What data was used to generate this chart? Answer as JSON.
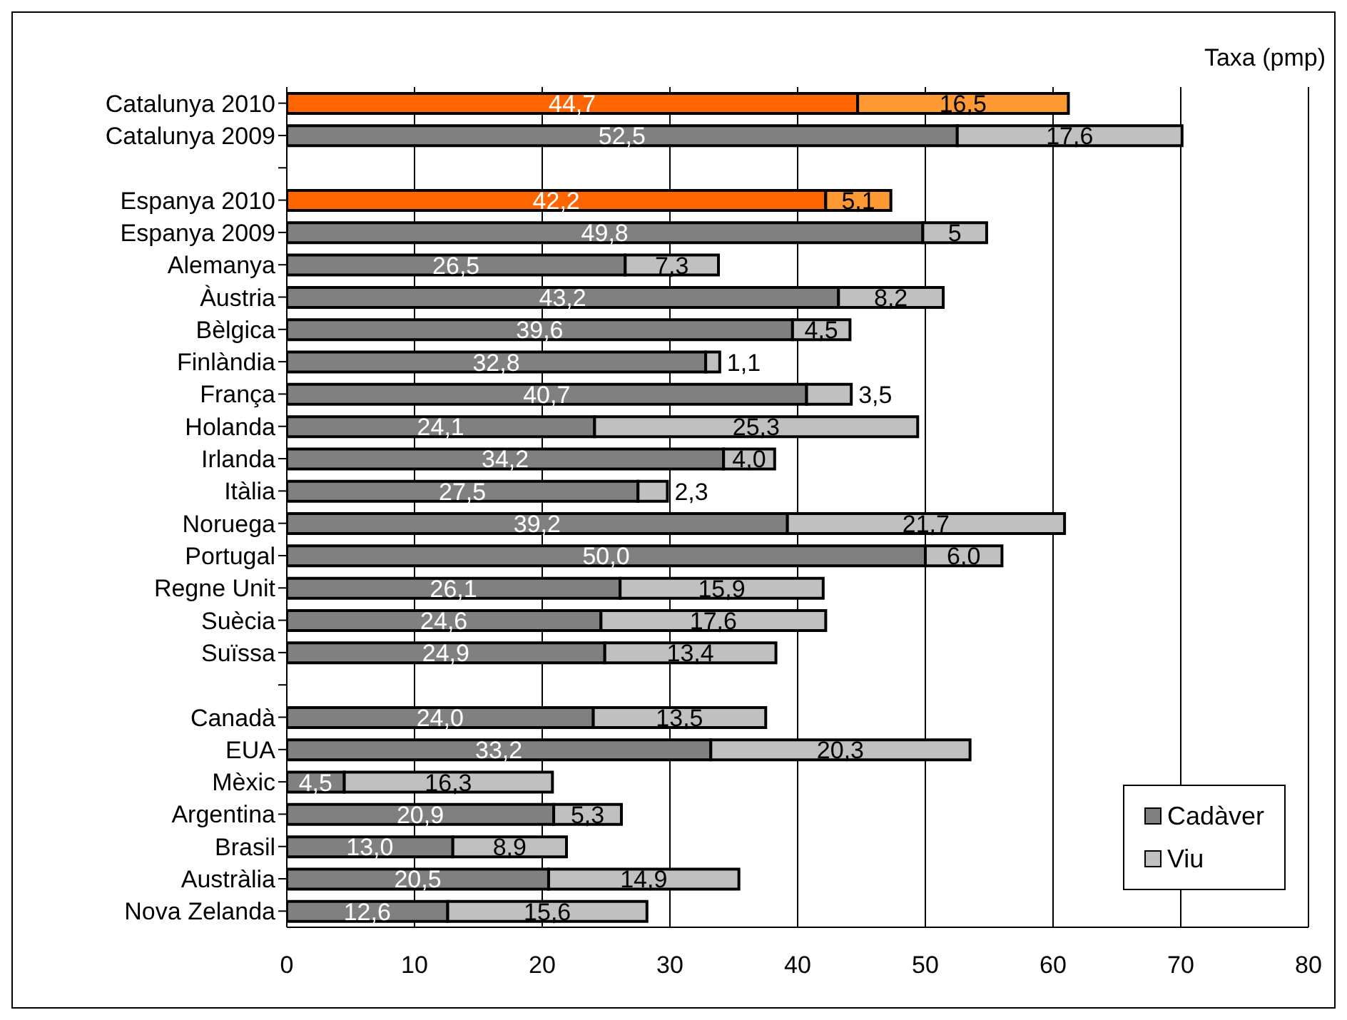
{
  "chart_data": {
    "type": "bar",
    "orientation": "horizontal",
    "stacked": true,
    "xlabel": "Taxa (pmp)",
    "categories": [
      "Catalunya 2010",
      "Catalunya 2009",
      null,
      "Espanya 2010",
      "Espanya 2009",
      "Alemanya",
      "Àustria",
      "Bèlgica",
      "Finlàndia",
      "França",
      "Holanda",
      "Irlanda",
      "Itàlia",
      "Noruega",
      "Portugal",
      "Regne Unit",
      "Suècia",
      "Suïssa",
      null,
      "Canadà",
      "EUA",
      "Mèxic",
      "Argentina",
      "Brasil",
      "Austràlia",
      "Nova Zelanda"
    ],
    "series": [
      {
        "name": "Cadàver",
        "color": "#808080",
        "colors": [
          "#ff6600",
          "#808080",
          "#808080",
          "#ff6600",
          "#808080",
          "#808080",
          "#808080",
          "#808080",
          "#808080",
          "#808080",
          "#808080",
          "#808080",
          "#808080",
          "#808080",
          "#808080",
          "#808080",
          "#808080",
          "#808080",
          "#808080",
          "#808080",
          "#808080",
          "#808080",
          "#808080",
          "#808080",
          "#808080",
          "#808080"
        ],
        "values": [
          44.7,
          52.5,
          null,
          42.2,
          49.8,
          26.5,
          43.2,
          39.6,
          32.8,
          40.7,
          24.1,
          34.2,
          27.5,
          39.2,
          50.0,
          26.1,
          24.6,
          24.9,
          null,
          24.0,
          33.2,
          4.5,
          20.9,
          13.0,
          20.5,
          12.6
        ],
        "value_labels": [
          "44,7",
          "52,5",
          null,
          "42,2",
          "49,8",
          "26,5",
          "43,2",
          "39,6",
          "32,8",
          "40,7",
          "24,1",
          "34,2",
          "27,5",
          "39,2",
          "50,0",
          "26,1",
          "24,6",
          "24,9",
          null,
          "24,0",
          "33,2",
          "4,5",
          "20,9",
          "13,0",
          "20,5",
          "12,6"
        ]
      },
      {
        "name": "Viu",
        "color": "#c0c0c0",
        "colors": [
          "#ff9933",
          "#c0c0c0",
          "#c0c0c0",
          "#ff9933",
          "#c0c0c0",
          "#c0c0c0",
          "#c0c0c0",
          "#c0c0c0",
          "#c0c0c0",
          "#c0c0c0",
          "#c0c0c0",
          "#c0c0c0",
          "#c0c0c0",
          "#c0c0c0",
          "#c0c0c0",
          "#c0c0c0",
          "#c0c0c0",
          "#c0c0c0",
          "#c0c0c0",
          "#c0c0c0",
          "#c0c0c0",
          "#c0c0c0",
          "#c0c0c0",
          "#c0c0c0",
          "#c0c0c0",
          "#c0c0c0"
        ],
        "values": [
          16.5,
          17.6,
          null,
          5.1,
          5,
          7.3,
          8.2,
          4.5,
          1.1,
          3.5,
          25.3,
          4.0,
          2.3,
          21.7,
          6.0,
          15.9,
          17.6,
          13.4,
          null,
          13.5,
          20.3,
          16.3,
          5.3,
          8.9,
          14.9,
          15.6
        ],
        "value_labels": [
          "16,5",
          "17,6",
          null,
          "5,1",
          "5",
          "7,3",
          "8,2",
          "4,5",
          "1,1",
          "3,5",
          "25,3",
          "4,0",
          "2,3",
          "21,7",
          "6,0",
          "15,9",
          "17,6",
          "13,4",
          null,
          "13,5",
          "20,3",
          "16,3",
          "5,3",
          "8,9",
          "14,9",
          "15,6"
        ]
      }
    ],
    "xlim": [
      0,
      80
    ],
    "xticks": [
      0,
      10,
      20,
      30,
      40,
      50,
      60,
      70,
      80
    ],
    "grid": "x",
    "legend": "bottom right"
  }
}
